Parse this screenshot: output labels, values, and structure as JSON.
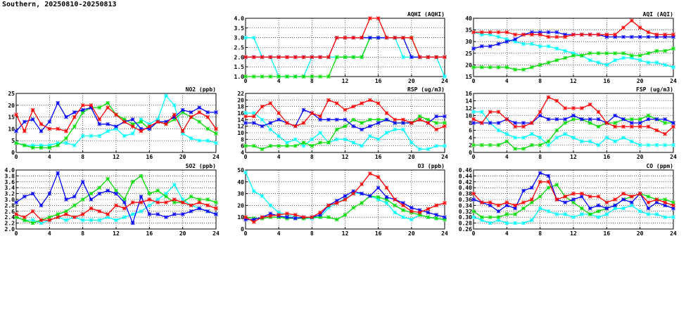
{
  "page": {
    "title": "Southern, 20250810-20250813"
  },
  "colors": {
    "red": "#ff0000",
    "blue": "#0000ff",
    "green": "#00dd00",
    "cyan": "#00ffff"
  },
  "chart_data": [
    {
      "id": "aqhi",
      "type": "line",
      "title": "AQHI (AQHI)",
      "xlim": [
        0,
        24
      ],
      "xticks": [
        0,
        4,
        8,
        12,
        16,
        20,
        24
      ],
      "ylim": [
        1.0,
        4.0
      ],
      "yticks": [
        "1.0",
        "1.5",
        "2.0",
        "2.5",
        "3.0",
        "3.5",
        "4.0"
      ],
      "grid": true,
      "series": [
        {
          "color": "cyan",
          "values": [
            3,
            3,
            2,
            2,
            1,
            1,
            1,
            1,
            2,
            2,
            2,
            2,
            2,
            2,
            2,
            3,
            3,
            3,
            3,
            2,
            2,
            2,
            2,
            2,
            1
          ]
        },
        {
          "color": "green",
          "values": [
            1,
            1,
            1,
            1,
            1,
            1,
            1,
            1,
            1,
            1,
            1,
            2,
            2,
            2,
            2,
            3,
            3,
            3,
            3,
            3,
            3,
            2,
            2,
            2,
            2
          ]
        },
        {
          "color": "blue",
          "values": [
            2,
            2,
            2,
            2,
            2,
            2,
            2,
            2,
            2,
            2,
            2,
            3,
            3,
            3,
            3,
            3,
            3,
            3,
            3,
            3,
            2,
            2,
            2,
            2,
            2
          ]
        },
        {
          "color": "red",
          "values": [
            2,
            2,
            2,
            2,
            2,
            2,
            2,
            2,
            2,
            2,
            2,
            3,
            3,
            3,
            3,
            4,
            4,
            3,
            3,
            3,
            3,
            2,
            2,
            2,
            2
          ]
        }
      ]
    },
    {
      "id": "aqi",
      "type": "line",
      "title": "AQI (AQI)",
      "xlim": [
        0,
        24
      ],
      "xticks": [
        0,
        4,
        8,
        12,
        16,
        20,
        24
      ],
      "ylim": [
        15,
        40
      ],
      "yticks": [
        "15",
        "20",
        "25",
        "30",
        "35",
        "40"
      ],
      "grid": true,
      "series": [
        {
          "color": "cyan",
          "values": [
            34,
            33,
            33,
            32,
            31,
            30,
            29,
            29,
            28,
            28,
            27,
            26,
            25,
            24,
            22,
            21,
            20,
            22,
            23,
            23,
            22,
            21,
            21,
            20,
            19
          ]
        },
        {
          "color": "green",
          "values": [
            19,
            19,
            19,
            19,
            19,
            18,
            18,
            19,
            20,
            21,
            22,
            23,
            24,
            24,
            25,
            25,
            25,
            25,
            25,
            24,
            24,
            25,
            26,
            26,
            27
          ]
        },
        {
          "color": "blue",
          "values": [
            27,
            28,
            28,
            29,
            30,
            31,
            33,
            34,
            34,
            34,
            34,
            33,
            33,
            33,
            33,
            33,
            32,
            32,
            32,
            32,
            32,
            32,
            32,
            32,
            32
          ]
        },
        {
          "color": "red",
          "values": [
            34,
            34,
            34,
            34,
            34,
            33,
            33,
            33,
            33,
            32,
            32,
            32,
            33,
            33,
            33,
            33,
            33,
            33,
            36,
            39,
            36,
            34,
            33,
            33,
            33
          ]
        }
      ]
    },
    {
      "id": "no2",
      "type": "line",
      "title": "NO2 (ppb)",
      "xlim": [
        0,
        24
      ],
      "xticks": [
        0,
        4,
        8,
        12,
        16,
        20,
        24
      ],
      "ylim": [
        0,
        25
      ],
      "yticks": [
        "0",
        "5",
        "10",
        "15",
        "20",
        "25"
      ],
      "grid": true,
      "series": [
        {
          "color": "cyan",
          "values": [
            4,
            3,
            3,
            3,
            3,
            4,
            4,
            3,
            7,
            7,
            7,
            9,
            10,
            7,
            8,
            14,
            12,
            14,
            24,
            20,
            8,
            6,
            5,
            5,
            4
          ]
        },
        {
          "color": "green",
          "values": [
            4,
            3,
            2,
            2,
            2,
            3,
            6,
            11,
            17,
            19,
            19,
            21,
            16,
            14,
            12,
            13,
            10,
            13,
            12,
            14,
            17,
            15,
            13,
            10,
            8
          ]
        },
        {
          "color": "blue",
          "values": [
            9,
            13,
            14,
            9,
            13,
            21,
            15,
            17,
            18,
            19,
            12,
            12,
            11,
            13,
            14,
            10,
            10,
            13,
            13,
            15,
            18,
            17,
            19,
            17,
            17
          ]
        },
        {
          "color": "red",
          "values": [
            16,
            9,
            18,
            12,
            10,
            10,
            9,
            15,
            20,
            20,
            14,
            19,
            16,
            13,
            11,
            9,
            11,
            13,
            12,
            16,
            9,
            15,
            17,
            15,
            10
          ]
        }
      ]
    },
    {
      "id": "rsp",
      "type": "line",
      "title": "RSP (ug/m3)",
      "xlim": [
        0,
        24
      ],
      "xticks": [
        0,
        4,
        8,
        12,
        16,
        20,
        24
      ],
      "ylim": [
        4,
        22
      ],
      "yticks": [
        "4",
        "6",
        "8",
        "10",
        "12",
        "14",
        "16",
        "18",
        "20",
        "22"
      ],
      "grid": true,
      "series": [
        {
          "color": "cyan",
          "values": [
            16,
            16,
            14,
            11,
            9,
            7,
            8,
            6,
            8,
            10,
            7,
            8,
            8,
            7,
            6,
            9,
            8,
            10,
            11,
            11,
            7,
            5,
            5,
            6,
            6
          ]
        },
        {
          "color": "green",
          "values": [
            6,
            6,
            5,
            6,
            6,
            6,
            6,
            7,
            6,
            7,
            7,
            11,
            12,
            14,
            13,
            14,
            14,
            14,
            13,
            13,
            13,
            15,
            14,
            13,
            13
          ]
        },
        {
          "color": "blue",
          "values": [
            13,
            13,
            12,
            13,
            14,
            13,
            12,
            17,
            16,
            14,
            14,
            14,
            14,
            12,
            11,
            12,
            13,
            14,
            13,
            13,
            13,
            14,
            13,
            15,
            15
          ]
        },
        {
          "color": "red",
          "values": [
            15,
            15,
            18,
            19,
            16,
            13,
            12,
            13,
            16,
            15,
            20,
            19,
            17,
            18,
            19,
            20,
            19,
            16,
            14,
            14,
            13,
            14,
            13,
            11,
            12
          ]
        }
      ]
    },
    {
      "id": "fsp",
      "type": "line",
      "title": "FSP (ug/m3)",
      "xlim": [
        0,
        24
      ],
      "xticks": [
        0,
        4,
        8,
        12,
        16,
        20,
        24
      ],
      "ylim": [
        0,
        16
      ],
      "yticks": [
        "0",
        "2",
        "4",
        "6",
        "8",
        "10",
        "12",
        "14",
        "16"
      ],
      "grid": true,
      "series": [
        {
          "color": "cyan",
          "values": [
            11,
            11,
            8,
            6,
            5,
            4,
            4,
            5,
            4,
            2,
            4,
            5,
            4,
            3,
            3,
            2,
            4,
            3,
            4,
            3,
            2,
            2,
            2,
            2,
            2
          ]
        },
        {
          "color": "green",
          "values": [
            2,
            2,
            2,
            2,
            3,
            1,
            1,
            2,
            2,
            3,
            6,
            8,
            9,
            9,
            8,
            7,
            8,
            8,
            9,
            9,
            9,
            10,
            9,
            8,
            8
          ]
        },
        {
          "color": "blue",
          "values": [
            8,
            8,
            8,
            8,
            9,
            8,
            8,
            8,
            10,
            9,
            9,
            9,
            10,
            9,
            9,
            9,
            8,
            10,
            9,
            8,
            8,
            9,
            9,
            9,
            8
          ]
        },
        {
          "color": "red",
          "values": [
            9,
            8,
            11,
            11,
            9,
            7,
            7,
            8,
            11,
            15,
            14,
            12,
            12,
            12,
            13,
            11,
            8,
            7,
            7,
            7,
            7,
            7,
            6,
            5,
            7
          ]
        }
      ]
    },
    {
      "id": "so2",
      "type": "line",
      "title": "SO2 (ppb)",
      "xlim": [
        0,
        24
      ],
      "xticks": [
        0,
        4,
        8,
        12,
        16,
        20,
        24
      ],
      "ylim": [
        2.0,
        4.0
      ],
      "yticks": [
        "2.0",
        "2.2",
        "2.4",
        "2.6",
        "2.8",
        "3.0",
        "3.2",
        "3.4",
        "3.6",
        "3.8",
        "4.0"
      ],
      "grid": true,
      "series": [
        {
          "color": "cyan",
          "values": [
            2.4,
            2.3,
            2.3,
            2.2,
            2.3,
            2.4,
            2.3,
            2.4,
            2.3,
            2.3,
            2.3,
            2.4,
            2.3,
            2.4,
            2.5,
            2.6,
            2.8,
            3.0,
            3.2,
            3.5,
            3.0,
            2.8,
            2.7,
            2.6,
            2.5
          ]
        },
        {
          "color": "green",
          "values": [
            2.4,
            2.3,
            2.2,
            2.3,
            2.4,
            2.5,
            2.6,
            2.8,
            3.0,
            3.2,
            3.4,
            3.7,
            3.3,
            3.0,
            3.6,
            3.8,
            3.2,
            3.3,
            3.1,
            2.9,
            2.9,
            3.1,
            3.0,
            3.0,
            2.9
          ]
        },
        {
          "color": "blue",
          "values": [
            2.9,
            3.1,
            3.2,
            2.8,
            3.2,
            3.9,
            3.0,
            3.1,
            3.6,
            3.0,
            3.2,
            3.3,
            3.2,
            2.9,
            2.2,
            3.1,
            2.5,
            2.5,
            2.4,
            2.5,
            2.5,
            2.6,
            2.7,
            2.6,
            2.5
          ]
        },
        {
          "color": "red",
          "values": [
            2.5,
            2.4,
            2.6,
            2.3,
            2.3,
            2.4,
            2.5,
            2.4,
            2.5,
            2.7,
            2.6,
            2.5,
            2.8,
            2.7,
            2.9,
            2.9,
            3.0,
            2.9,
            2.9,
            3.0,
            2.9,
            2.8,
            2.9,
            2.8,
            2.7
          ]
        }
      ]
    },
    {
      "id": "o3",
      "type": "line",
      "title": "O3 (ppb)",
      "xlim": [
        0,
        24
      ],
      "xticks": [
        0,
        4,
        8,
        12,
        16,
        20,
        24
      ],
      "ylim": [
        0,
        50
      ],
      "yticks": [
        "0",
        "10",
        "20",
        "30",
        "40",
        "50"
      ],
      "grid": true,
      "series": [
        {
          "color": "cyan",
          "values": [
            48,
            32,
            28,
            20,
            14,
            12,
            10,
            9,
            9,
            10,
            18,
            22,
            26,
            30,
            30,
            28,
            25,
            22,
            14,
            10,
            8,
            12,
            10,
            9,
            8
          ]
        },
        {
          "color": "green",
          "values": [
            10,
            9,
            9,
            10,
            10,
            9,
            9,
            9,
            10,
            10,
            10,
            8,
            12,
            18,
            22,
            28,
            27,
            25,
            20,
            16,
            14,
            12,
            10,
            9,
            8
          ]
        },
        {
          "color": "blue",
          "values": [
            8,
            8,
            10,
            13,
            11,
            10,
            9,
            10,
            10,
            12,
            20,
            24,
            28,
            32,
            30,
            28,
            35,
            27,
            25,
            22,
            18,
            16,
            14,
            12,
            10
          ]
        },
        {
          "color": "red",
          "values": [
            10,
            6,
            10,
            11,
            12,
            13,
            12,
            10,
            10,
            14,
            20,
            22,
            25,
            30,
            38,
            47,
            44,
            35,
            25,
            20,
            15,
            14,
            17,
            20,
            22
          ]
        }
      ]
    },
    {
      "id": "co",
      "type": "line",
      "title": "CO (ppm)",
      "xlim": [
        0,
        24
      ],
      "xticks": [
        0,
        4,
        8,
        12,
        16,
        20,
        24
      ],
      "ylim": [
        0.26,
        0.46
      ],
      "yticks": [
        "0.26",
        "0.28",
        "0.30",
        "0.32",
        "0.34",
        "0.36",
        "0.38",
        "0.40",
        "0.42",
        "0.44",
        "0.46"
      ],
      "grid": true,
      "series": [
        {
          "color": "cyan",
          "values": [
            0.3,
            0.29,
            0.28,
            0.29,
            0.28,
            0.28,
            0.28,
            0.29,
            0.33,
            0.32,
            0.31,
            0.31,
            0.3,
            0.31,
            0.31,
            0.3,
            0.31,
            0.33,
            0.33,
            0.34,
            0.32,
            0.31,
            0.31,
            0.3,
            0.3
          ]
        },
        {
          "color": "green",
          "values": [
            0.32,
            0.3,
            0.3,
            0.3,
            0.31,
            0.31,
            0.33,
            0.35,
            0.37,
            0.4,
            0.41,
            0.37,
            0.35,
            0.33,
            0.31,
            0.32,
            0.33,
            0.34,
            0.36,
            0.37,
            0.38,
            0.37,
            0.36,
            0.36,
            0.35
          ]
        },
        {
          "color": "blue",
          "values": [
            0.36,
            0.35,
            0.34,
            0.32,
            0.34,
            0.33,
            0.39,
            0.4,
            0.45,
            0.44,
            0.36,
            0.35,
            0.36,
            0.37,
            0.33,
            0.34,
            0.33,
            0.34,
            0.36,
            0.35,
            0.38,
            0.33,
            0.35,
            0.34,
            0.33
          ]
        },
        {
          "color": "red",
          "values": [
            0.38,
            0.35,
            0.35,
            0.34,
            0.35,
            0.34,
            0.35,
            0.36,
            0.42,
            0.42,
            0.36,
            0.37,
            0.38,
            0.38,
            0.37,
            0.37,
            0.35,
            0.36,
            0.38,
            0.37,
            0.38,
            0.35,
            0.36,
            0.35,
            0.34
          ]
        }
      ]
    }
  ]
}
